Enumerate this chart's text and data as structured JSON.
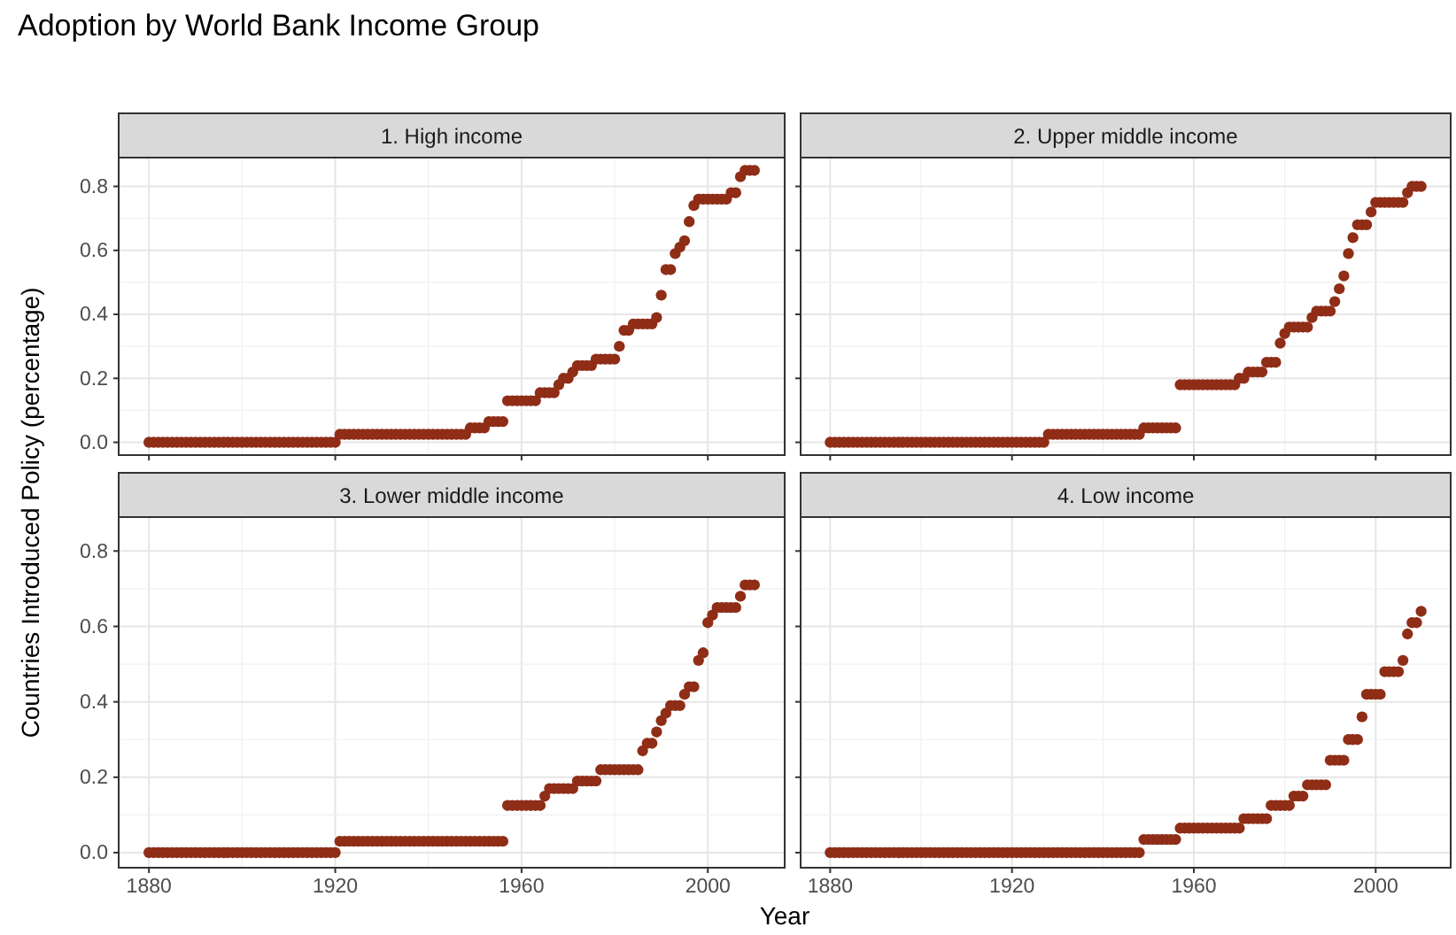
{
  "chart_data": [
    {
      "type": "scatter",
      "title": "1. High income",
      "ylabel": "Countries Introduced Policy (percentage)",
      "annotations": [
        "Adoption by World Bank Income Group"
      ],
      "color": "#8f2d17",
      "marker": "circle",
      "grid": true,
      "tick_labels": "y",
      "xlim": [
        1873.5,
        2016.5
      ],
      "xticks": [
        1880,
        1920,
        1960,
        2000
      ],
      "ylim": [
        -0.04,
        0.89
      ],
      "yticks": [
        {
          "value": 0,
          "label": "0.0"
        },
        {
          "value": 0.2,
          "label": "0.2"
        },
        {
          "value": 0.4,
          "label": "0.4"
        },
        {
          "value": 0.6,
          "label": "0.6"
        },
        {
          "value": 0.8,
          "label": "0.8"
        }
      ],
      "x": [
        1880,
        1881,
        1882,
        1883,
        1884,
        1885,
        1886,
        1887,
        1888,
        1889,
        1890,
        1891,
        1892,
        1893,
        1894,
        1895,
        1896,
        1897,
        1898,
        1899,
        1900,
        1901,
        1902,
        1903,
        1904,
        1905,
        1906,
        1907,
        1908,
        1909,
        1910,
        1911,
        1912,
        1913,
        1914,
        1915,
        1916,
        1917,
        1918,
        1919,
        1920,
        1921,
        1922,
        1923,
        1924,
        1925,
        1926,
        1927,
        1928,
        1929,
        1930,
        1931,
        1932,
        1933,
        1934,
        1935,
        1936,
        1937,
        1938,
        1939,
        1940,
        1941,
        1942,
        1943,
        1944,
        1945,
        1946,
        1947,
        1948,
        1949,
        1950,
        1951,
        1952,
        1953,
        1954,
        1955,
        1956,
        1957,
        1958,
        1959,
        1960,
        1961,
        1962,
        1963,
        1964,
        1965,
        1966,
        1967,
        1968,
        1969,
        1970,
        1971,
        1972,
        1973,
        1974,
        1975,
        1976,
        1977,
        1978,
        1979,
        1980,
        1981,
        1982,
        1983,
        1984,
        1985,
        1986,
        1987,
        1988,
        1989,
        1990,
        1991,
        1992,
        1993,
        1994,
        1995,
        1996,
        1997,
        1998,
        1999,
        2000,
        2001,
        2002,
        2003,
        2004,
        2005,
        2006,
        2007,
        2008,
        2009,
        2010
      ],
      "values": [
        0,
        0,
        0,
        0,
        0,
        0,
        0,
        0,
        0,
        0,
        0,
        0,
        0,
        0,
        0,
        0,
        0,
        0,
        0,
        0,
        0,
        0,
        0,
        0,
        0,
        0,
        0,
        0,
        0,
        0,
        0,
        0,
        0,
        0,
        0,
        0,
        0,
        0,
        0,
        0,
        0,
        0.025,
        0.025,
        0.025,
        0.025,
        0.025,
        0.025,
        0.025,
        0.025,
        0.025,
        0.025,
        0.025,
        0.025,
        0.025,
        0.025,
        0.025,
        0.025,
        0.025,
        0.025,
        0.025,
        0.025,
        0.025,
        0.025,
        0.025,
        0.025,
        0.025,
        0.025,
        0.025,
        0.025,
        0.045,
        0.045,
        0.045,
        0.045,
        0.065,
        0.065,
        0.065,
        0.065,
        0.13,
        0.13,
        0.13,
        0.13,
        0.13,
        0.13,
        0.13,
        0.155,
        0.155,
        0.155,
        0.155,
        0.18,
        0.2,
        0.2,
        0.22,
        0.24,
        0.24,
        0.24,
        0.24,
        0.26,
        0.26,
        0.26,
        0.26,
        0.26,
        0.3,
        0.35,
        0.35,
        0.37,
        0.37,
        0.37,
        0.37,
        0.37,
        0.39,
        0.46,
        0.54,
        0.54,
        0.59,
        0.61,
        0.63,
        0.69,
        0.74,
        0.76,
        0.76,
        0.76,
        0.76,
        0.76,
        0.76,
        0.76,
        0.78,
        0.78,
        0.83,
        0.85,
        0.85,
        0.85
      ]
    },
    {
      "type": "scatter",
      "title": "2. Upper middle income",
      "color": "#8f2d17",
      "marker": "circle",
      "grid": true,
      "tick_labels": false,
      "xlim": [
        1873.5,
        2016.5
      ],
      "xticks": [
        1880,
        1920,
        1960,
        2000
      ],
      "ylim": [
        -0.04,
        0.89
      ],
      "yticks": [
        0,
        0.2,
        0.4,
        0.6,
        0.8
      ],
      "x": [
        1880,
        1881,
        1882,
        1883,
        1884,
        1885,
        1886,
        1887,
        1888,
        1889,
        1890,
        1891,
        1892,
        1893,
        1894,
        1895,
        1896,
        1897,
        1898,
        1899,
        1900,
        1901,
        1902,
        1903,
        1904,
        1905,
        1906,
        1907,
        1908,
        1909,
        1910,
        1911,
        1912,
        1913,
        1914,
        1915,
        1916,
        1917,
        1918,
        1919,
        1920,
        1921,
        1922,
        1923,
        1924,
        1925,
        1926,
        1927,
        1928,
        1929,
        1930,
        1931,
        1932,
        1933,
        1934,
        1935,
        1936,
        1937,
        1938,
        1939,
        1940,
        1941,
        1942,
        1943,
        1944,
        1945,
        1946,
        1947,
        1948,
        1949,
        1950,
        1951,
        1952,
        1953,
        1954,
        1955,
        1956,
        1957,
        1958,
        1959,
        1960,
        1961,
        1962,
        1963,
        1964,
        1965,
        1966,
        1967,
        1968,
        1969,
        1970,
        1971,
        1972,
        1973,
        1974,
        1975,
        1976,
        1977,
        1978,
        1979,
        1980,
        1981,
        1982,
        1983,
        1984,
        1985,
        1986,
        1987,
        1988,
        1989,
        1990,
        1991,
        1992,
        1993,
        1994,
        1995,
        1996,
        1997,
        1998,
        1999,
        2000,
        2001,
        2002,
        2003,
        2004,
        2005,
        2006,
        2007,
        2008,
        2009,
        2010
      ],
      "values": [
        0,
        0,
        0,
        0,
        0,
        0,
        0,
        0,
        0,
        0,
        0,
        0,
        0,
        0,
        0,
        0,
        0,
        0,
        0,
        0,
        0,
        0,
        0,
        0,
        0,
        0,
        0,
        0,
        0,
        0,
        0,
        0,
        0,
        0,
        0,
        0,
        0,
        0,
        0,
        0,
        0,
        0,
        0,
        0,
        0,
        0,
        0,
        0,
        0.025,
        0.025,
        0.025,
        0.025,
        0.025,
        0.025,
        0.025,
        0.025,
        0.025,
        0.025,
        0.025,
        0.025,
        0.025,
        0.025,
        0.025,
        0.025,
        0.025,
        0.025,
        0.025,
        0.025,
        0.025,
        0.045,
        0.045,
        0.045,
        0.045,
        0.045,
        0.045,
        0.045,
        0.045,
        0.18,
        0.18,
        0.18,
        0.18,
        0.18,
        0.18,
        0.18,
        0.18,
        0.18,
        0.18,
        0.18,
        0.18,
        0.18,
        0.2,
        0.2,
        0.22,
        0.22,
        0.22,
        0.22,
        0.25,
        0.25,
        0.25,
        0.31,
        0.34,
        0.36,
        0.36,
        0.36,
        0.36,
        0.36,
        0.39,
        0.41,
        0.41,
        0.41,
        0.41,
        0.44,
        0.48,
        0.52,
        0.59,
        0.64,
        0.68,
        0.68,
        0.68,
        0.72,
        0.75,
        0.75,
        0.75,
        0.75,
        0.75,
        0.75,
        0.75,
        0.78,
        0.8,
        0.8,
        0.8
      ]
    },
    {
      "type": "scatter",
      "title": "3. Lower middle income",
      "xlabel": "Year",
      "color": "#8f2d17",
      "marker": "circle",
      "grid": true,
      "xlim": [
        1873.5,
        2016.5
      ],
      "xticks": [
        1880,
        1920,
        1960,
        2000
      ],
      "ylim": [
        -0.04,
        0.89
      ],
      "yticks": [
        {
          "value": 0,
          "label": "0.0"
        },
        {
          "value": 0.2,
          "label": "0.2"
        },
        {
          "value": 0.4,
          "label": "0.4"
        },
        {
          "value": 0.6,
          "label": "0.6"
        },
        {
          "value": 0.8,
          "label": "0.8"
        }
      ],
      "x": [
        1880,
        1881,
        1882,
        1883,
        1884,
        1885,
        1886,
        1887,
        1888,
        1889,
        1890,
        1891,
        1892,
        1893,
        1894,
        1895,
        1896,
        1897,
        1898,
        1899,
        1900,
        1901,
        1902,
        1903,
        1904,
        1905,
        1906,
        1907,
        1908,
        1909,
        1910,
        1911,
        1912,
        1913,
        1914,
        1915,
        1916,
        1917,
        1918,
        1919,
        1920,
        1921,
        1922,
        1923,
        1924,
        1925,
        1926,
        1927,
        1928,
        1929,
        1930,
        1931,
        1932,
        1933,
        1934,
        1935,
        1936,
        1937,
        1938,
        1939,
        1940,
        1941,
        1942,
        1943,
        1944,
        1945,
        1946,
        1947,
        1948,
        1949,
        1950,
        1951,
        1952,
        1953,
        1954,
        1955,
        1956,
        1957,
        1958,
        1959,
        1960,
        1961,
        1962,
        1963,
        1964,
        1965,
        1966,
        1967,
        1968,
        1969,
        1970,
        1971,
        1972,
        1973,
        1974,
        1975,
        1976,
        1977,
        1978,
        1979,
        1980,
        1981,
        1982,
        1983,
        1984,
        1985,
        1986,
        1987,
        1988,
        1989,
        1990,
        1991,
        1992,
        1993,
        1994,
        1995,
        1996,
        1997,
        1998,
        1999,
        2000,
        2001,
        2002,
        2003,
        2004,
        2005,
        2006,
        2007,
        2008,
        2009,
        2010
      ],
      "values": [
        0,
        0,
        0,
        0,
        0,
        0,
        0,
        0,
        0,
        0,
        0,
        0,
        0,
        0,
        0,
        0,
        0,
        0,
        0,
        0,
        0,
        0,
        0,
        0,
        0,
        0,
        0,
        0,
        0,
        0,
        0,
        0,
        0,
        0,
        0,
        0,
        0,
        0,
        0,
        0,
        0,
        0.03,
        0.03,
        0.03,
        0.03,
        0.03,
        0.03,
        0.03,
        0.03,
        0.03,
        0.03,
        0.03,
        0.03,
        0.03,
        0.03,
        0.03,
        0.03,
        0.03,
        0.03,
        0.03,
        0.03,
        0.03,
        0.03,
        0.03,
        0.03,
        0.03,
        0.03,
        0.03,
        0.03,
        0.03,
        0.03,
        0.03,
        0.03,
        0.03,
        0.03,
        0.03,
        0.03,
        0.125,
        0.125,
        0.125,
        0.125,
        0.125,
        0.125,
        0.125,
        0.125,
        0.15,
        0.17,
        0.17,
        0.17,
        0.17,
        0.17,
        0.17,
        0.19,
        0.19,
        0.19,
        0.19,
        0.19,
        0.22,
        0.22,
        0.22,
        0.22,
        0.22,
        0.22,
        0.22,
        0.22,
        0.22,
        0.27,
        0.29,
        0.29,
        0.32,
        0.35,
        0.37,
        0.39,
        0.39,
        0.39,
        0.42,
        0.44,
        0.44,
        0.51,
        0.53,
        0.61,
        0.63,
        0.65,
        0.65,
        0.65,
        0.65,
        0.65,
        0.68,
        0.71,
        0.71,
        0.71
      ]
    },
    {
      "type": "scatter",
      "title": "4. Low income",
      "color": "#8f2d17",
      "marker": "circle",
      "grid": true,
      "tick_labels": "x",
      "xlim": [
        1873.5,
        2016.5
      ],
      "xticks": [
        1880,
        1920,
        1960,
        2000
      ],
      "ylim": [
        -0.04,
        0.89
      ],
      "yticks": [
        0,
        0.2,
        0.4,
        0.6,
        0.8
      ],
      "x": [
        1880,
        1881,
        1882,
        1883,
        1884,
        1885,
        1886,
        1887,
        1888,
        1889,
        1890,
        1891,
        1892,
        1893,
        1894,
        1895,
        1896,
        1897,
        1898,
        1899,
        1900,
        1901,
        1902,
        1903,
        1904,
        1905,
        1906,
        1907,
        1908,
        1909,
        1910,
        1911,
        1912,
        1913,
        1914,
        1915,
        1916,
        1917,
        1918,
        1919,
        1920,
        1921,
        1922,
        1923,
        1924,
        1925,
        1926,
        1927,
        1928,
        1929,
        1930,
        1931,
        1932,
        1933,
        1934,
        1935,
        1936,
        1937,
        1938,
        1939,
        1940,
        1941,
        1942,
        1943,
        1944,
        1945,
        1946,
        1947,
        1948,
        1949,
        1950,
        1951,
        1952,
        1953,
        1954,
        1955,
        1956,
        1957,
        1958,
        1959,
        1960,
        1961,
        1962,
        1963,
        1964,
        1965,
        1966,
        1967,
        1968,
        1969,
        1970,
        1971,
        1972,
        1973,
        1974,
        1975,
        1976,
        1977,
        1978,
        1979,
        1980,
        1981,
        1982,
        1983,
        1984,
        1985,
        1986,
        1987,
        1988,
        1989,
        1990,
        1991,
        1992,
        1993,
        1994,
        1995,
        1996,
        1997,
        1998,
        1999,
        2000,
        2001,
        2002,
        2003,
        2004,
        2005,
        2006,
        2007,
        2008,
        2009,
        2010
      ],
      "values": [
        0,
        0,
        0,
        0,
        0,
        0,
        0,
        0,
        0,
        0,
        0,
        0,
        0,
        0,
        0,
        0,
        0,
        0,
        0,
        0,
        0,
        0,
        0,
        0,
        0,
        0,
        0,
        0,
        0,
        0,
        0,
        0,
        0,
        0,
        0,
        0,
        0,
        0,
        0,
        0,
        0,
        0,
        0,
        0,
        0,
        0,
        0,
        0,
        0,
        0,
        0,
        0,
        0,
        0,
        0,
        0,
        0,
        0,
        0,
        0,
        0,
        0,
        0,
        0,
        0,
        0,
        0,
        0,
        0,
        0.035,
        0.035,
        0.035,
        0.035,
        0.035,
        0.035,
        0.035,
        0.035,
        0.065,
        0.065,
        0.065,
        0.065,
        0.065,
        0.065,
        0.065,
        0.065,
        0.065,
        0.065,
        0.065,
        0.065,
        0.065,
        0.065,
        0.09,
        0.09,
        0.09,
        0.09,
        0.09,
        0.09,
        0.125,
        0.125,
        0.125,
        0.125,
        0.125,
        0.15,
        0.15,
        0.15,
        0.18,
        0.18,
        0.18,
        0.18,
        0.18,
        0.245,
        0.245,
        0.245,
        0.245,
        0.3,
        0.3,
        0.3,
        0.36,
        0.42,
        0.42,
        0.42,
        0.42,
        0.48,
        0.48,
        0.48,
        0.48,
        0.51,
        0.58,
        0.61,
        0.61,
        0.64
      ]
    }
  ]
}
